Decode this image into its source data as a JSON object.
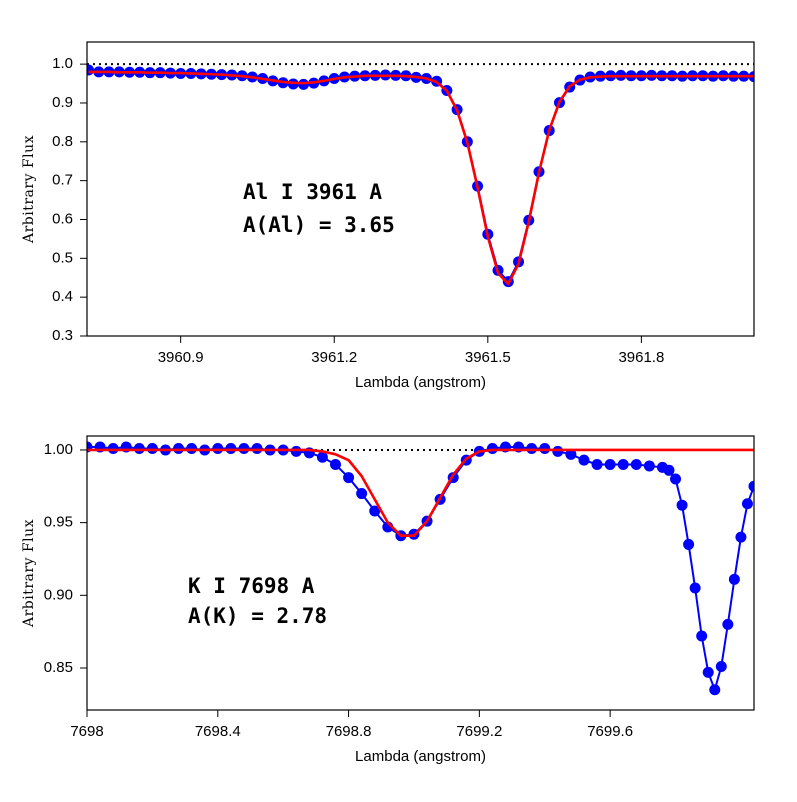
{
  "chart_data": [
    {
      "type": "line",
      "xlabel": "Lambda (angstrom)",
      "ylabel": "Arbitrary Flux",
      "annotations": [
        "Al I 3961 A",
        "A(Al) = 3.65"
      ],
      "xlim": [
        3960.717,
        3962.02
      ],
      "ylim": [
        0.3,
        1.057
      ],
      "xticks": [
        3960.9,
        3961.2,
        3961.5,
        3961.8
      ],
      "yticks": [
        0.3,
        0.4,
        0.5,
        0.6,
        0.7,
        0.8,
        0.9,
        {
          "value": 1,
          "label": "1.0"
        }
      ],
      "reference_line": 1,
      "x": [
        3960.72,
        3960.74,
        3960.76,
        3960.78,
        3960.8,
        3960.82,
        3960.84,
        3960.86,
        3960.88,
        3960.9,
        3960.92,
        3960.94,
        3960.96,
        3960.98,
        3961.0,
        3961.02,
        3961.04,
        3961.06,
        3961.08,
        3961.1,
        3961.12,
        3961.14,
        3961.16,
        3961.18,
        3961.2,
        3961.22,
        3961.24,
        3961.26,
        3961.28,
        3961.3,
        3961.32,
        3961.34,
        3961.36,
        3961.38,
        3961.4,
        3961.42,
        3961.44,
        3961.46,
        3961.48,
        3961.5,
        3961.52,
        3961.54,
        3961.56,
        3961.58,
        3961.6,
        3961.62,
        3961.64,
        3961.66,
        3961.68,
        3961.7,
        3961.72,
        3961.74,
        3961.76,
        3961.78,
        3961.8,
        3961.82,
        3961.84,
        3961.86,
        3961.88,
        3961.9,
        3961.92,
        3961.94,
        3961.96,
        3961.98,
        3962.0,
        3962.02
      ],
      "series": [
        {
          "color": "#0000ff",
          "markers": true,
          "values": [
            0.985,
            0.98,
            0.98,
            0.98,
            0.979,
            0.979,
            0.978,
            0.978,
            0.977,
            0.976,
            0.976,
            0.975,
            0.974,
            0.973,
            0.972,
            0.97,
            0.967,
            0.963,
            0.957,
            0.952,
            0.949,
            0.948,
            0.951,
            0.957,
            0.963,
            0.967,
            0.969,
            0.97,
            0.971,
            0.972,
            0.971,
            0.97,
            0.966,
            0.963,
            0.956,
            0.932,
            0.883,
            0.8,
            0.686,
            0.562,
            0.469,
            0.44,
            0.491,
            0.598,
            0.723,
            0.829,
            0.901,
            0.941,
            0.959,
            0.967,
            0.969,
            0.97,
            0.971,
            0.97,
            0.97,
            0.971,
            0.97,
            0.97,
            0.969,
            0.97,
            0.97,
            0.969,
            0.97,
            0.969,
            0.969,
            0.968
          ]
        },
        {
          "color": "#ff0000",
          "markers": false,
          "values": [
            0.98,
            0.98,
            0.98,
            0.979,
            0.979,
            0.979,
            0.978,
            0.978,
            0.977,
            0.977,
            0.976,
            0.975,
            0.974,
            0.973,
            0.971,
            0.969,
            0.966,
            0.962,
            0.958,
            0.954,
            0.952,
            0.951,
            0.953,
            0.957,
            0.962,
            0.966,
            0.968,
            0.97,
            0.97,
            0.97,
            0.97,
            0.969,
            0.967,
            0.963,
            0.954,
            0.931,
            0.881,
            0.798,
            0.682,
            0.556,
            0.462,
            0.434,
            0.486,
            0.594,
            0.721,
            0.83,
            0.903,
            0.943,
            0.96,
            0.966,
            0.968,
            0.969,
            0.969,
            0.969,
            0.969,
            0.969,
            0.969,
            0.969,
            0.969,
            0.969,
            0.969,
            0.969,
            0.969,
            0.969,
            0.969,
            0.969
          ]
        }
      ]
    },
    {
      "type": "line",
      "xlabel": "Lambda (angstrom)",
      "ylabel": "Arbitrary Flux",
      "annotations": [
        "K I 7698 A",
        "A(K) = 2.78"
      ],
      "xlim": [
        7698,
        7700.04
      ],
      "ylim": [
        0.8211,
        1.0096
      ],
      "xticks": [
        7698,
        7698.4,
        7698.8,
        7699.2,
        7699.6
      ],
      "yticks": [
        {
          "value": 0.85,
          "label": "0.85"
        },
        {
          "value": 0.9,
          "label": "0.90"
        },
        {
          "value": 0.95,
          "label": "0.95"
        },
        {
          "value": 1,
          "label": "1.00"
        }
      ],
      "reference_line": 1,
      "x": [
        7698.0,
        7698.04,
        7698.08,
        7698.12,
        7698.16,
        7698.2,
        7698.24,
        7698.28,
        7698.32,
        7698.36,
        7698.4,
        7698.44,
        7698.48,
        7698.52,
        7698.56,
        7698.6,
        7698.64,
        7698.68,
        7698.72,
        7698.76,
        7698.8,
        7698.84,
        7698.88,
        7698.92,
        7698.96,
        7699.0,
        7699.04,
        7699.08,
        7699.12,
        7699.16,
        7699.2,
        7699.24,
        7699.28,
        7699.32,
        7699.36,
        7699.4,
        7699.44,
        7699.48,
        7699.52,
        7699.56,
        7699.6,
        7699.64,
        7699.68,
        7699.72,
        7699.76,
        7699.78,
        7699.8,
        7699.82,
        7699.84,
        7699.86,
        7699.88,
        7699.9,
        7699.92,
        7699.94,
        7699.96,
        7699.98,
        7700.0,
        7700.02,
        7700.04
      ],
      "series": [
        {
          "color": "#0000ff",
          "markers": true,
          "values": [
            1.002,
            1.002,
            1.001,
            1.002,
            1.001,
            1.001,
            1.0,
            1.001,
            1.001,
            1.0,
            1.001,
            1.001,
            1.001,
            1.001,
            1.0,
            1.0,
            0.999,
            0.998,
            0.995,
            0.99,
            0.981,
            0.97,
            0.958,
            0.947,
            0.941,
            0.942,
            0.951,
            0.966,
            0.981,
            0.993,
            0.999,
            1.001,
            1.002,
            1.002,
            1.001,
            1.001,
            0.999,
            0.997,
            0.993,
            0.99,
            0.99,
            0.99,
            0.99,
            0.989,
            0.988,
            0.986,
            0.98,
            0.962,
            0.935,
            0.905,
            0.872,
            0.847,
            0.835,
            0.851,
            0.88,
            0.911,
            0.94,
            0.963,
            0.975
          ]
        },
        {
          "color": "#ff0000",
          "markers": false,
          "values": [
            1.0,
            1.0,
            1.0,
            1.0,
            1.0,
            1.0,
            1.0,
            1.0,
            1.0,
            1.0,
            1.0,
            1.0,
            1.0,
            1.0,
            1.0,
            1.0,
            1.0,
            1.0,
            0.999,
            0.997,
            0.993,
            0.982,
            0.966,
            0.95,
            0.941,
            0.941,
            0.951,
            0.967,
            0.983,
            0.994,
            0.999,
            1.0,
            1.0,
            1.0,
            1.0,
            1.0,
            1.0,
            1.0,
            1.0,
            1.0,
            1.0,
            1.0,
            1.0,
            1.0,
            1.0,
            1.0,
            1.0,
            1.0,
            1.0,
            1.0,
            1.0,
            1.0,
            1.0,
            1.0,
            1.0,
            1.0,
            1.0,
            1.0,
            1.0
          ]
        }
      ]
    }
  ]
}
